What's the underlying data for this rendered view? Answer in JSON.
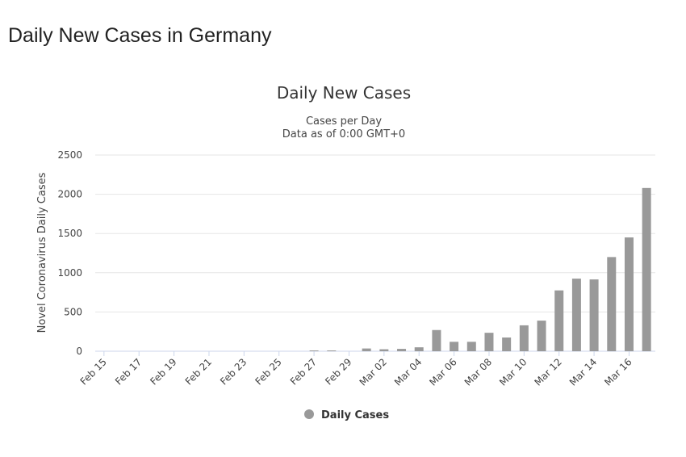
{
  "page_title": "Daily New Cases in Germany",
  "chart_data": {
    "type": "bar",
    "title": "Daily New Cases",
    "subtitle": [
      "Cases per Day",
      "Data as of 0:00 GMT+0"
    ],
    "y_label": "Novel Coronavirus Daily Cases",
    "categories": [
      "Feb 15",
      null,
      "Feb 17",
      null,
      "Feb 19",
      null,
      "Feb 21",
      null,
      "Feb 23",
      null,
      "Feb 25",
      null,
      "Feb 27",
      null,
      "Feb 29",
      null,
      "Mar 02",
      null,
      "Mar 04",
      null,
      "Mar 06",
      null,
      "Mar 08",
      null,
      "Mar 10",
      null,
      "Mar 12",
      null,
      "Mar 14",
      null,
      "Mar 16",
      null
    ],
    "series": [
      {
        "name": "Daily Cases",
        "color": "#999999",
        "values": [
          0,
          0,
          0,
          0,
          0,
          0,
          0,
          0,
          0,
          0,
          0,
          0,
          10,
          10,
          0,
          35,
          25,
          30,
          50,
          270,
          120,
          120,
          235,
          175,
          330,
          390,
          775,
          925,
          915,
          1200,
          1450,
          2080
        ]
      }
    ],
    "ylim": [
      0,
      2500
    ],
    "yticks": [
      0,
      500,
      1000,
      1500,
      2000,
      2500
    ],
    "grid": true,
    "legend": "bottom"
  }
}
